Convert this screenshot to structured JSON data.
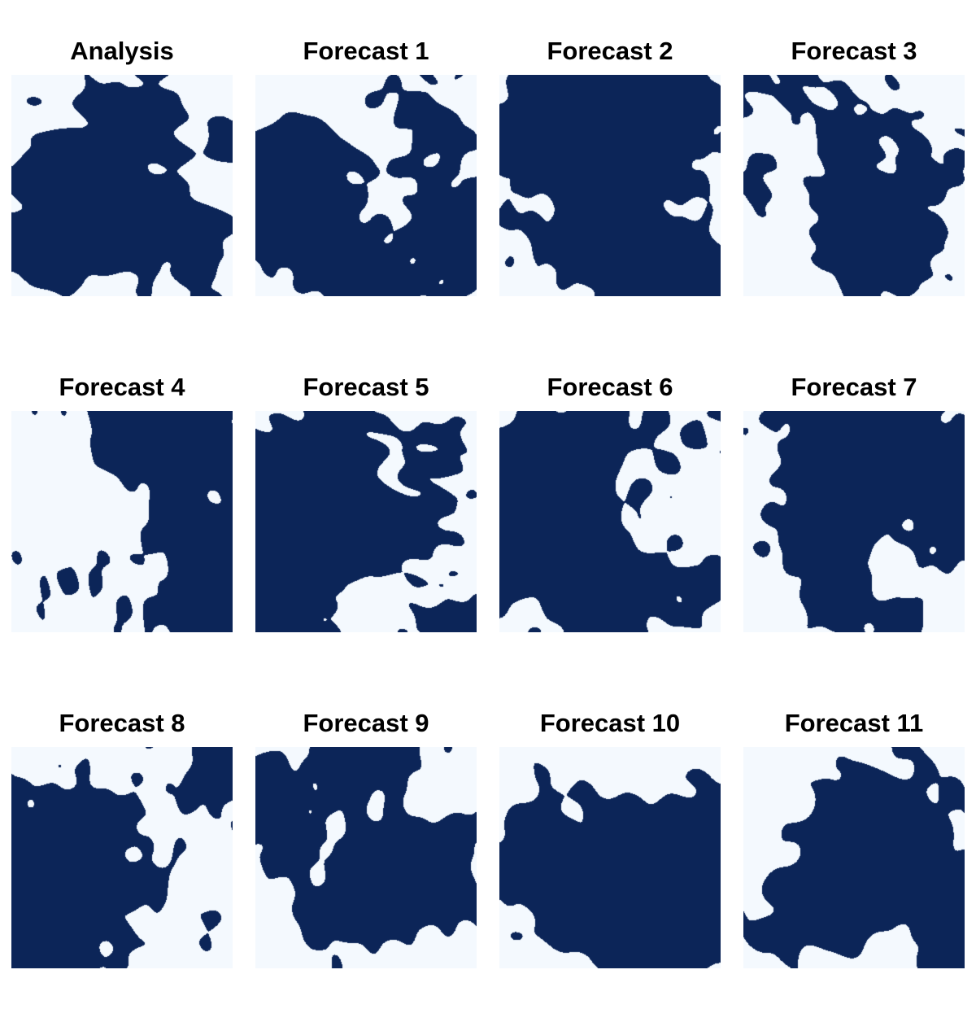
{
  "figure": {
    "colors": {
      "background": "#f4f9fe",
      "feature": "#0c2558"
    }
  },
  "panels": [
    {
      "title": "Analysis",
      "seed": 11
    },
    {
      "title": "Forecast 1",
      "seed": 23
    },
    {
      "title": "Forecast 2",
      "seed": 37
    },
    {
      "title": "Forecast 3",
      "seed": 41
    },
    {
      "title": "Forecast 4",
      "seed": 53
    },
    {
      "title": "Forecast 5",
      "seed": 67
    },
    {
      "title": "Forecast 6",
      "seed": 71
    },
    {
      "title": "Forecast 7",
      "seed": 83
    },
    {
      "title": "Forecast 8",
      "seed": 97
    },
    {
      "title": "Forecast 9",
      "seed": 101
    },
    {
      "title": "Forecast 10",
      "seed": 113
    },
    {
      "title": "Forecast 11",
      "seed": 127
    }
  ],
  "chart_data": {
    "type": "heatmap",
    "layout": "3 rows x 4 columns",
    "value_encoding": "binary: 1 = dark blue region, 0 = light background",
    "grid": false,
    "axes": "hidden",
    "titles": [
      "Analysis",
      "Forecast 1",
      "Forecast 2",
      "Forecast 3",
      "Forecast 4",
      "Forecast 5",
      "Forecast 6",
      "Forecast 7",
      "Forecast 8",
      "Forecast 9",
      "Forecast 10",
      "Forecast 11"
    ]
  }
}
